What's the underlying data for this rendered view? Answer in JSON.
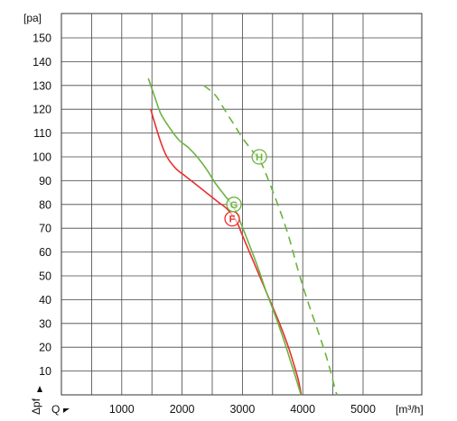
{
  "chart_data": {
    "type": "line",
    "title": "",
    "xlabel": "[m³/h]",
    "ylabel": "[pa]",
    "x_axis_symbol": "Q",
    "y_axis_symbol": "Δpf",
    "xlim": [
      0,
      5500
    ],
    "ylim": [
      0,
      155
    ],
    "x_ticks": [
      "1000",
      "2000",
      "3000",
      "4000",
      "5000"
    ],
    "y_ticks": [
      "10",
      "20",
      "30",
      "40",
      "50",
      "60",
      "70",
      "80",
      "90",
      "100",
      "110",
      "120",
      "130",
      "140",
      "150"
    ],
    "grid": true,
    "legend": "curve labels (circled letters) on the lines",
    "series": [
      {
        "name": "F",
        "color": "#e8302e",
        "dashed": false,
        "label_at": [
          2830,
          74
        ],
        "points": [
          [
            1480,
            120
          ],
          [
            1550,
            114
          ],
          [
            1650,
            106
          ],
          [
            1750,
            100
          ],
          [
            1900,
            95
          ],
          [
            2050,
            92
          ],
          [
            2200,
            89
          ],
          [
            2400,
            85
          ],
          [
            2600,
            81
          ],
          [
            2750,
            78
          ],
          [
            2900,
            73
          ],
          [
            3000,
            67
          ],
          [
            3200,
            55
          ],
          [
            3400,
            43
          ],
          [
            3600,
            31
          ],
          [
            3750,
            21
          ],
          [
            3850,
            13
          ],
          [
            3930,
            6
          ],
          [
            3975,
            0
          ]
        ]
      },
      {
        "name": "G",
        "color": "#6cb33f",
        "dashed": false,
        "label_at": [
          2860,
          80
        ],
        "points": [
          [
            1440,
            133
          ],
          [
            1550,
            125
          ],
          [
            1650,
            118
          ],
          [
            1800,
            112
          ],
          [
            1950,
            107
          ],
          [
            2100,
            104
          ],
          [
            2250,
            100
          ],
          [
            2400,
            95
          ],
          [
            2550,
            89
          ],
          [
            2700,
            84
          ],
          [
            2850,
            79
          ],
          [
            2960,
            73
          ],
          [
            3100,
            64
          ],
          [
            3250,
            54
          ],
          [
            3400,
            43
          ],
          [
            3550,
            33
          ],
          [
            3700,
            22
          ],
          [
            3800,
            14
          ],
          [
            3900,
            6
          ],
          [
            3970,
            0
          ]
        ]
      },
      {
        "name": "H",
        "color": "#6cb33f",
        "dashed": true,
        "label_at": [
          3280,
          100
        ],
        "points": [
          [
            2360,
            130
          ],
          [
            2550,
            126
          ],
          [
            2700,
            120
          ],
          [
            2850,
            114
          ],
          [
            3000,
            108
          ],
          [
            3150,
            103
          ],
          [
            3300,
            98
          ],
          [
            3450,
            89
          ],
          [
            3600,
            79
          ],
          [
            3750,
            68
          ],
          [
            3850,
            59
          ],
          [
            3950,
            50
          ],
          [
            4100,
            38
          ],
          [
            4250,
            27
          ],
          [
            4380,
            17
          ],
          [
            4460,
            10
          ],
          [
            4540,
            2
          ],
          [
            4570,
            0
          ]
        ]
      }
    ]
  }
}
